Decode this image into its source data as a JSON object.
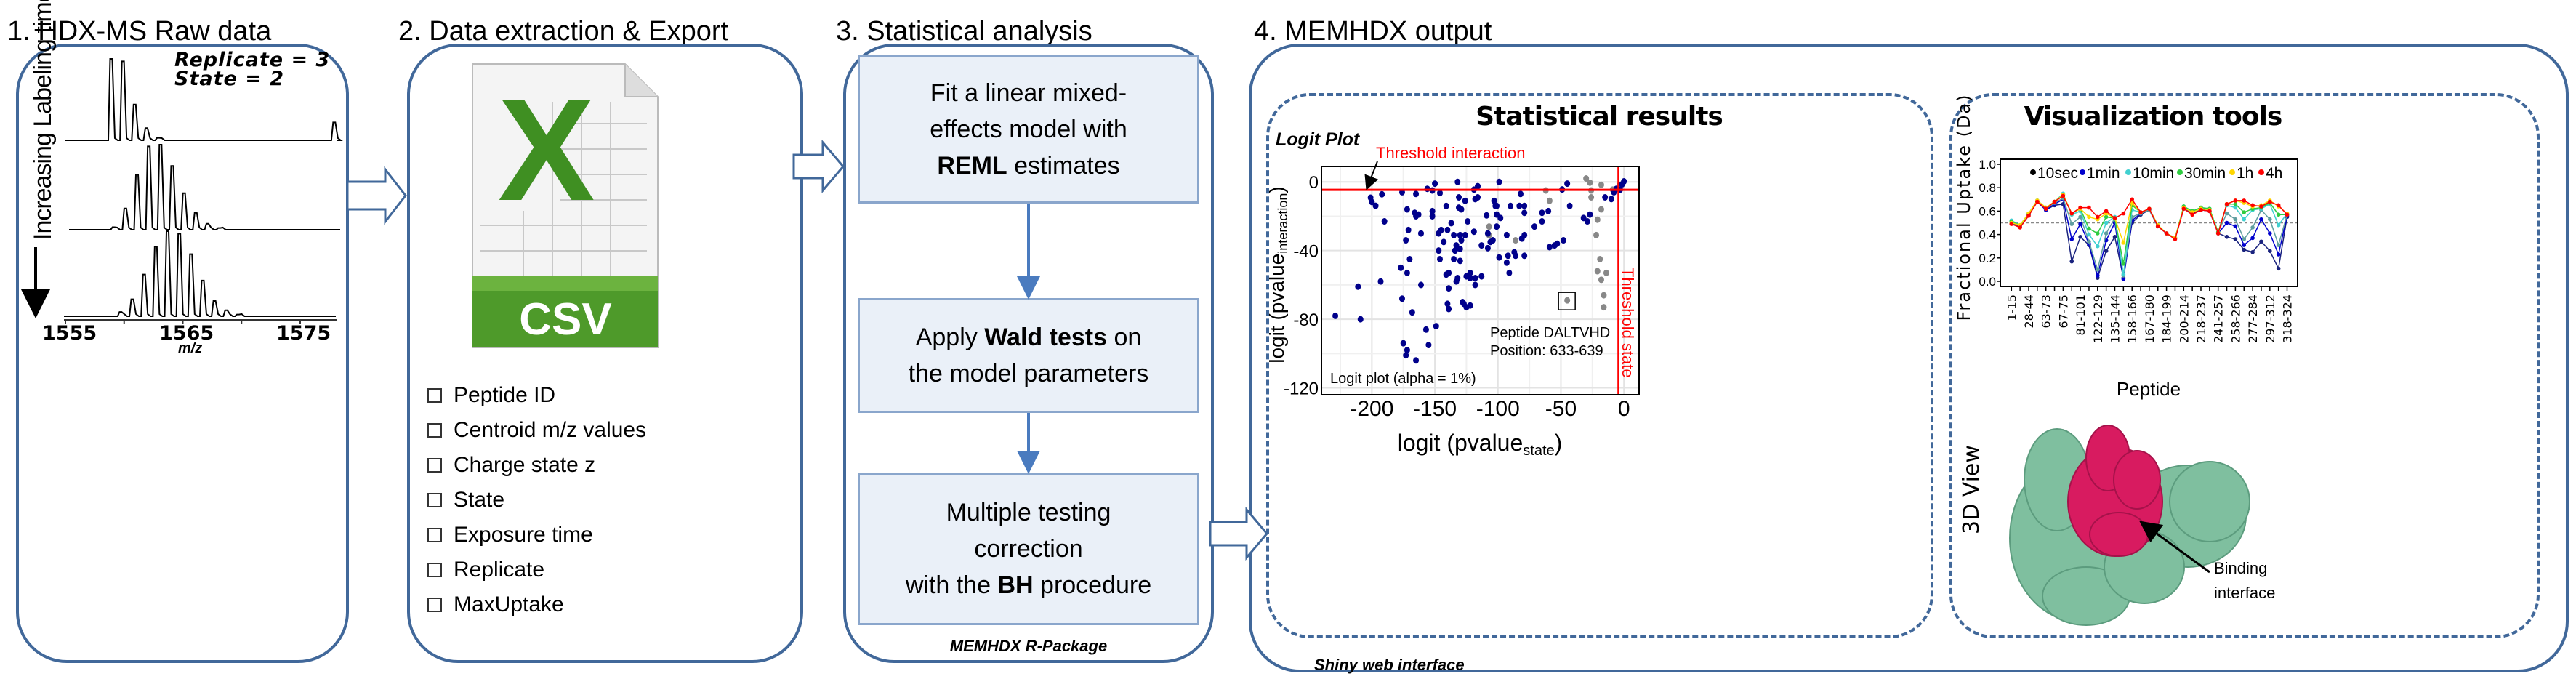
{
  "steps": {
    "s1": {
      "title": "1. HDX-MS Raw data",
      "replicate": "Replicate = 3",
      "state": "State = 2",
      "time_label": "Increasing Labeling time",
      "xlabel": "m/z",
      "xticks": [
        "1555",
        "1565",
        "1575"
      ]
    },
    "s2": {
      "title": "2. Data extraction & Export",
      "icon_letter": "X",
      "icon_label": "CSV",
      "fields": [
        "Peptide ID",
        "Centroid m/z values",
        "Charge state z",
        "State",
        "Exposure time",
        "Replicate",
        "MaxUptake"
      ]
    },
    "s3": {
      "title": "3. Statistical analysis",
      "box1": {
        "l1": "Fit a linear mixed-",
        "l2": "effects model with",
        "l3_bold": "REML",
        "l3": " estimates"
      },
      "box2": {
        "l1a": "Apply ",
        "l1_bold": "Wald tests",
        "l1b": " on",
        "l2": "the model parameters"
      },
      "box3": {
        "l1": "Multiple testing",
        "l2": "correction",
        "l3a": "with the ",
        "l3_bold": "BH",
        "l3b": " procedure"
      },
      "footer": "MEMHDX R-Package"
    },
    "s4": {
      "title": "4. MEMHDX output",
      "footer": "Shiny web interface",
      "stats_title": "Statistical results",
      "viz_title": "Visualization tools",
      "view3d": "3D View",
      "binding_l1": "Binding",
      "binding_l2": "interface"
    }
  },
  "colors": {
    "panel_border": "#41689a",
    "threshold": "#ff0000",
    "sig_point": "#00008b",
    "nonsig_point": "#888888",
    "protein": "#7fbf9f",
    "interface": "#d81b60"
  },
  "chart_data": [
    {
      "type": "line",
      "title": "",
      "xlabel": "m/z",
      "xlim": [
        1555,
        1577
      ],
      "xticks": [
        1555,
        1560,
        1565,
        1570,
        1575
      ],
      "series": [
        {
          "peaks": [
            [
              1558.9,
              1.0
            ],
            [
              1559.9,
              0.97
            ],
            [
              1560.9,
              0.44
            ],
            [
              1561.9,
              0.15
            ],
            [
              1562.9,
              0.03
            ],
            [
              1577.9,
              0.22
            ]
          ]
        },
        {
          "peaks": [
            [
              1559.1,
              0.03
            ],
            [
              1560.1,
              0.25
            ],
            [
              1561.1,
              0.65
            ],
            [
              1562.1,
              0.98
            ],
            [
              1563.1,
              1.0
            ],
            [
              1564.1,
              0.75
            ],
            [
              1565.1,
              0.43
            ],
            [
              1566.1,
              0.2
            ],
            [
              1567.1,
              0.07
            ],
            [
              1568.1,
              0.02
            ]
          ]
        },
        {
          "peaks": [
            [
              1559.7,
              0.05
            ],
            [
              1560.7,
              0.2
            ],
            [
              1561.7,
              0.49
            ],
            [
              1562.7,
              0.82
            ],
            [
              1563.7,
              1.0
            ],
            [
              1564.7,
              0.97
            ],
            [
              1565.7,
              0.73
            ],
            [
              1566.7,
              0.42
            ],
            [
              1567.7,
              0.18
            ],
            [
              1568.7,
              0.07
            ],
            [
              1569.7,
              0.02
            ]
          ]
        }
      ]
    },
    {
      "type": "scatter",
      "title": "Logit Plot",
      "xlabel": "logit (pvalue",
      "xlabel_sub": "state",
      "xlabel_end": ")",
      "ylabel": "logit (pvalue",
      "ylabel_sub": "interaction",
      "ylabel_end": ")",
      "xlim": [
        -240,
        12
      ],
      "ylim": [
        -124,
        9
      ],
      "xticks": [
        -200,
        -150,
        -100,
        -50,
        0
      ],
      "yticks": [
        0,
        -40,
        -80,
        -120
      ],
      "grid": true,
      "threshold_interaction": {
        "value": -4.6,
        "label": "Threshold interaction"
      },
      "threshold_state": {
        "value": -4.6,
        "label": "Threshold state"
      },
      "annotation": {
        "text1": "Peptide DALTVHD",
        "text2": "Position: 633-639",
        "point": [
          -45,
          -69
        ]
      },
      "note": "Logit plot (alpha = 1%)",
      "significant": [
        [
          -201,
          -9.2
        ],
        [
          -200,
          -11.7
        ],
        [
          -197,
          -13.9
        ],
        [
          -192,
          -7.2
        ],
        [
          -190,
          -23
        ],
        [
          -193,
          -58
        ],
        [
          -211,
          -61
        ],
        [
          -209,
          -80
        ],
        [
          -229,
          -78
        ],
        [
          -176,
          -6
        ],
        [
          -172,
          -16
        ],
        [
          -171,
          -28
        ],
        [
          -173,
          -34
        ],
        [
          -170,
          -45
        ],
        [
          -177,
          -50
        ],
        [
          -172,
          -53
        ],
        [
          -176,
          -68
        ],
        [
          -168,
          -76
        ],
        [
          -175,
          -94
        ],
        [
          -172,
          -98
        ],
        [
          -173,
          -101
        ],
        [
          -165,
          -104
        ],
        [
          -165,
          -7
        ],
        [
          -166,
          -18
        ],
        [
          -165,
          -20
        ],
        [
          -163,
          -19
        ],
        [
          -161,
          -30
        ],
        [
          -161,
          -60
        ],
        [
          -157,
          -86
        ],
        [
          -155,
          -95
        ],
        [
          -156,
          -4
        ],
        [
          -152,
          -5
        ],
        [
          -150,
          -1
        ],
        [
          -152,
          -17
        ],
        [
          -152,
          -20
        ],
        [
          -146,
          -6.5
        ],
        [
          -147,
          -30
        ],
        [
          -145,
          -28
        ],
        [
          -147,
          -40
        ],
        [
          -146,
          -45
        ],
        [
          -149,
          -84
        ],
        [
          -141,
          -14
        ],
        [
          -140,
          -28
        ],
        [
          -143,
          -35
        ],
        [
          -137,
          -24
        ],
        [
          -135,
          -31
        ],
        [
          -134,
          -40
        ],
        [
          -133,
          -37
        ],
        [
          -135,
          -45
        ],
        [
          -141,
          -54
        ],
        [
          -139,
          -53
        ],
        [
          -139,
          -62
        ],
        [
          -140,
          -71
        ],
        [
          -139,
          -74
        ],
        [
          -132,
          0
        ],
        [
          -131,
          -9
        ],
        [
          -131,
          -15
        ],
        [
          -129,
          -16
        ],
        [
          -130,
          -31
        ],
        [
          -129,
          -34
        ],
        [
          -130,
          -39
        ],
        [
          -130,
          -46
        ],
        [
          -132,
          -56
        ],
        [
          -133,
          -58
        ],
        [
          -128,
          -70
        ],
        [
          -127,
          -71
        ],
        [
          -125,
          -73
        ],
        [
          -122,
          -72
        ],
        [
          -126,
          -11
        ],
        [
          -126,
          -31
        ],
        [
          -124,
          -23
        ],
        [
          -125,
          -55
        ],
        [
          -122,
          -53
        ],
        [
          -122,
          -56
        ],
        [
          -118,
          -56
        ],
        [
          -118,
          -60
        ],
        [
          -119,
          -4.5
        ],
        [
          -116,
          -2.5
        ],
        [
          -118,
          -10
        ],
        [
          -116,
          -9
        ],
        [
          -119,
          -29
        ],
        [
          -113,
          -37
        ],
        [
          -113,
          -55
        ],
        [
          -109,
          -19.5
        ],
        [
          -108,
          -30
        ],
        [
          -108,
          -38.6
        ],
        [
          -106,
          -35
        ],
        [
          -104,
          -34
        ],
        [
          -103,
          -11
        ],
        [
          -101,
          -26
        ],
        [
          -102,
          -14
        ],
        [
          -101,
          -14
        ],
        [
          -101,
          -19
        ],
        [
          -98,
          -21
        ],
        [
          -99,
          0
        ],
        [
          -99,
          -44
        ],
        [
          -93,
          -31
        ],
        [
          -92,
          -43
        ],
        [
          -93,
          -47
        ],
        [
          -91,
          -53
        ],
        [
          -90,
          -14
        ],
        [
          -87,
          -41
        ],
        [
          -86,
          -43
        ],
        [
          -83,
          -14
        ],
        [
          -82,
          -7
        ],
        [
          -81,
          -33
        ],
        [
          -79,
          -31
        ],
        [
          -79,
          -14
        ],
        [
          -79,
          -18
        ],
        [
          -79,
          -43
        ],
        [
          -71,
          -26
        ],
        [
          -65,
          -23
        ],
        [
          -65,
          -18
        ],
        [
          -60,
          -17
        ],
        [
          -59,
          -38
        ],
        [
          -55,
          -37
        ],
        [
          -53,
          -36
        ],
        [
          -48,
          -34
        ],
        [
          -49,
          -4.4
        ],
        [
          -45,
          -1
        ],
        [
          -43,
          -14
        ],
        [
          -32,
          -21
        ],
        [
          -29,
          -23
        ],
        [
          -27,
          -19
        ],
        [
          -15,
          -9
        ],
        [
          -10,
          -10
        ],
        [
          -8,
          -6
        ],
        [
          -6,
          -4
        ],
        [
          -3,
          -4.5
        ],
        [
          -1.5,
          -1.4
        ],
        [
          0,
          0.3
        ]
      ],
      "not_significant": [
        [
          -62,
          -5
        ],
        [
          -59,
          -11
        ],
        [
          -30,
          2
        ],
        [
          -27,
          -0.4
        ],
        [
          -26,
          -5
        ],
        [
          -26,
          -9
        ],
        [
          -18,
          -1.7
        ],
        [
          -18,
          -16
        ],
        [
          -21,
          -22
        ],
        [
          -22,
          -31
        ],
        [
          -19,
          -45
        ],
        [
          -21,
          -52
        ],
        [
          -18,
          -57
        ],
        [
          -14,
          -53
        ],
        [
          -16,
          -66
        ],
        [
          -16,
          -73
        ],
        [
          -107,
          -26
        ],
        [
          -107,
          -31
        ],
        [
          -86,
          -34
        ],
        [
          -45,
          -69
        ],
        [
          -9,
          -4.5
        ],
        [
          -3.5,
          -2
        ]
      ]
    },
    {
      "type": "line",
      "title": "",
      "xlabel": "Peptide",
      "ylabel": "Fractional Uptake (Da)",
      "ylim": [
        -0.04,
        1.04
      ],
      "yticks": [
        "0.0",
        "0.2",
        "0.4",
        "0.6",
        "0.8",
        "1.0"
      ],
      "reference_line": 0.5,
      "legend_position": "top",
      "categories": [
        "1-15",
        "",
        "28-44",
        "",
        "63-73",
        "",
        "67-75",
        "",
        "81-101",
        "",
        "122-129",
        "",
        "135-144",
        "",
        "158-166",
        "",
        "167-180",
        "",
        "184-199",
        "",
        "200-214",
        "",
        "218-237",
        "",
        "241-257",
        "",
        "258-266",
        "",
        "277-284",
        "",
        "297-312",
        "",
        "318-324"
      ],
      "series": [
        {
          "name": "10sec",
          "color": "#1a237e",
          "values": [
            0.5,
            0.47,
            0.57,
            0.68,
            0.61,
            0.65,
            0.66,
            0.17,
            0.38,
            0.31,
            0.03,
            0.26,
            0.38,
            0.03,
            0.5,
            0.57,
            0.61,
            0.47,
            0.41,
            0.37,
            0.62,
            0.58,
            0.61,
            0.6,
            0.41,
            0.38,
            0.36,
            0.27,
            0.25,
            0.34,
            0.26,
            0.11,
            0.55
          ]
        },
        {
          "name": "1min",
          "color": "#0000cd",
          "values": [
            0.5,
            0.47,
            0.57,
            0.68,
            0.61,
            0.66,
            0.7,
            0.36,
            0.49,
            0.32,
            0.05,
            0.35,
            0.5,
            0.02,
            0.52,
            0.58,
            0.61,
            0.47,
            0.41,
            0.37,
            0.62,
            0.58,
            0.61,
            0.6,
            0.41,
            0.5,
            0.47,
            0.31,
            0.37,
            0.53,
            0.41,
            0.23,
            0.56
          ]
        },
        {
          "color": "#5f9ea0",
          "values": [
            0.51,
            0.47,
            0.57,
            0.68,
            0.62,
            0.67,
            0.71,
            0.49,
            0.55,
            0.34,
            0.1,
            0.41,
            0.54,
            0.05,
            0.55,
            0.58,
            0.61,
            0.47,
            0.41,
            0.37,
            0.63,
            0.59,
            0.62,
            0.61,
            0.42,
            0.58,
            0.53,
            0.36,
            0.46,
            0.61,
            0.53,
            0.31,
            0.57
          ]
        },
        {
          "name": "10min",
          "color": "#40d0d0",
          "values": [
            0.52,
            0.48,
            0.58,
            0.69,
            0.62,
            0.68,
            0.75,
            0.57,
            0.6,
            0.4,
            0.3,
            0.5,
            0.55,
            0.06,
            0.61,
            0.59,
            0.62,
            0.48,
            0.41,
            0.37,
            0.64,
            0.6,
            0.63,
            0.62,
            0.42,
            0.65,
            0.63,
            0.53,
            0.61,
            0.62,
            0.66,
            0.48,
            0.58
          ]
        },
        {
          "name": "30min",
          "color": "#2ecc40",
          "values": [
            0.51,
            0.48,
            0.58,
            0.69,
            0.63,
            0.68,
            0.74,
            0.58,
            0.62,
            0.45,
            0.41,
            0.55,
            0.54,
            0.15,
            0.65,
            0.59,
            0.62,
            0.48,
            0.41,
            0.37,
            0.64,
            0.6,
            0.63,
            0.62,
            0.42,
            0.66,
            0.66,
            0.59,
            0.62,
            0.63,
            0.67,
            0.57,
            0.57
          ]
        },
        {
          "name": "1h",
          "color": "#ffd700",
          "values": [
            0.5,
            0.48,
            0.58,
            0.69,
            0.63,
            0.68,
            0.74,
            0.58,
            0.62,
            0.55,
            0.53,
            0.58,
            0.54,
            0.33,
            0.67,
            0.59,
            0.62,
            0.48,
            0.41,
            0.37,
            0.63,
            0.59,
            0.62,
            0.61,
            0.41,
            0.66,
            0.69,
            0.67,
            0.64,
            0.65,
            0.69,
            0.64,
            0.58
          ]
        },
        {
          "name": "4h",
          "color": "#ff0000",
          "values": [
            0.49,
            0.46,
            0.56,
            0.68,
            0.62,
            0.68,
            0.73,
            0.58,
            0.63,
            0.63,
            0.55,
            0.6,
            0.54,
            0.58,
            0.7,
            0.59,
            0.62,
            0.47,
            0.41,
            0.36,
            0.62,
            0.57,
            0.61,
            0.6,
            0.41,
            0.66,
            0.69,
            0.69,
            0.65,
            0.64,
            0.68,
            0.65,
            0.57
          ]
        }
      ]
    }
  ]
}
